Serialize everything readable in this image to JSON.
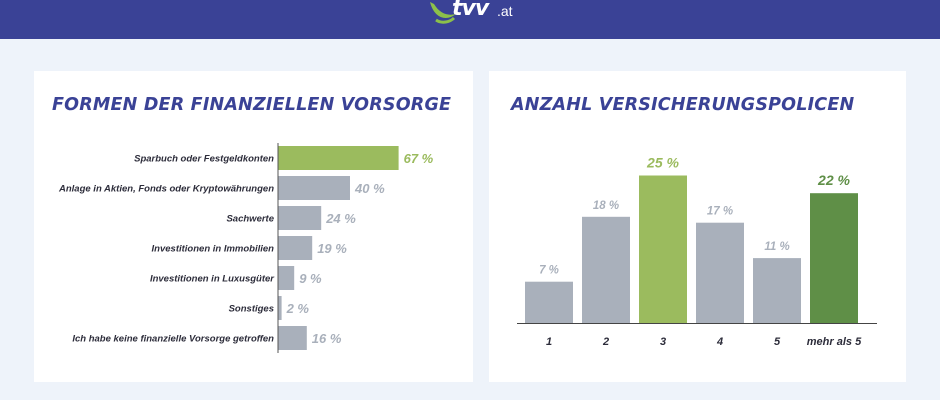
{
  "header": {
    "logo_text": "tvv",
    "logo_tld": ".at"
  },
  "colors": {
    "header_bg": "#3a4296",
    "title": "#3a4296",
    "bar_gray": "#a9b0bb",
    "highlight_light_green": "#9bbb5e",
    "highlight_dark_green": "#5f8f47",
    "text_dark": "#2c2c3a"
  },
  "chart_data": [
    {
      "type": "bar",
      "orientation": "horizontal",
      "title": "FORMEN DER FINANZIELLEN VORSORGE",
      "categories": [
        "Sparbuch oder Festgeldkonten",
        "Anlage in Aktien, Fonds oder Kryptowährungen",
        "Sachwerte",
        "Investitionen in Immobilien",
        "Investitionen in Luxusgüter",
        "Sonstiges",
        "Ich habe keine finanzielle Vorsorge getroffen"
      ],
      "values": [
        67,
        40,
        24,
        19,
        9,
        2,
        16
      ],
      "value_labels": [
        "67 %",
        "40 %",
        "24 %",
        "19 %",
        "9 %",
        "2 %",
        "16 %"
      ],
      "highlight_index": 0,
      "unit": "%"
    },
    {
      "type": "bar",
      "orientation": "vertical",
      "title": "ANZAHL VERSICHERUNGSPOLICEN",
      "categories": [
        "1",
        "2",
        "3",
        "4",
        "5",
        "mehr als 5"
      ],
      "values": [
        7,
        18,
        25,
        17,
        11,
        22
      ],
      "value_labels": [
        "7 %",
        "18 %",
        "25 %",
        "17 %",
        "11 %",
        "22 %"
      ],
      "highlight": {
        "2": "light_green",
        "5": "dark_green"
      },
      "unit": "%"
    }
  ]
}
